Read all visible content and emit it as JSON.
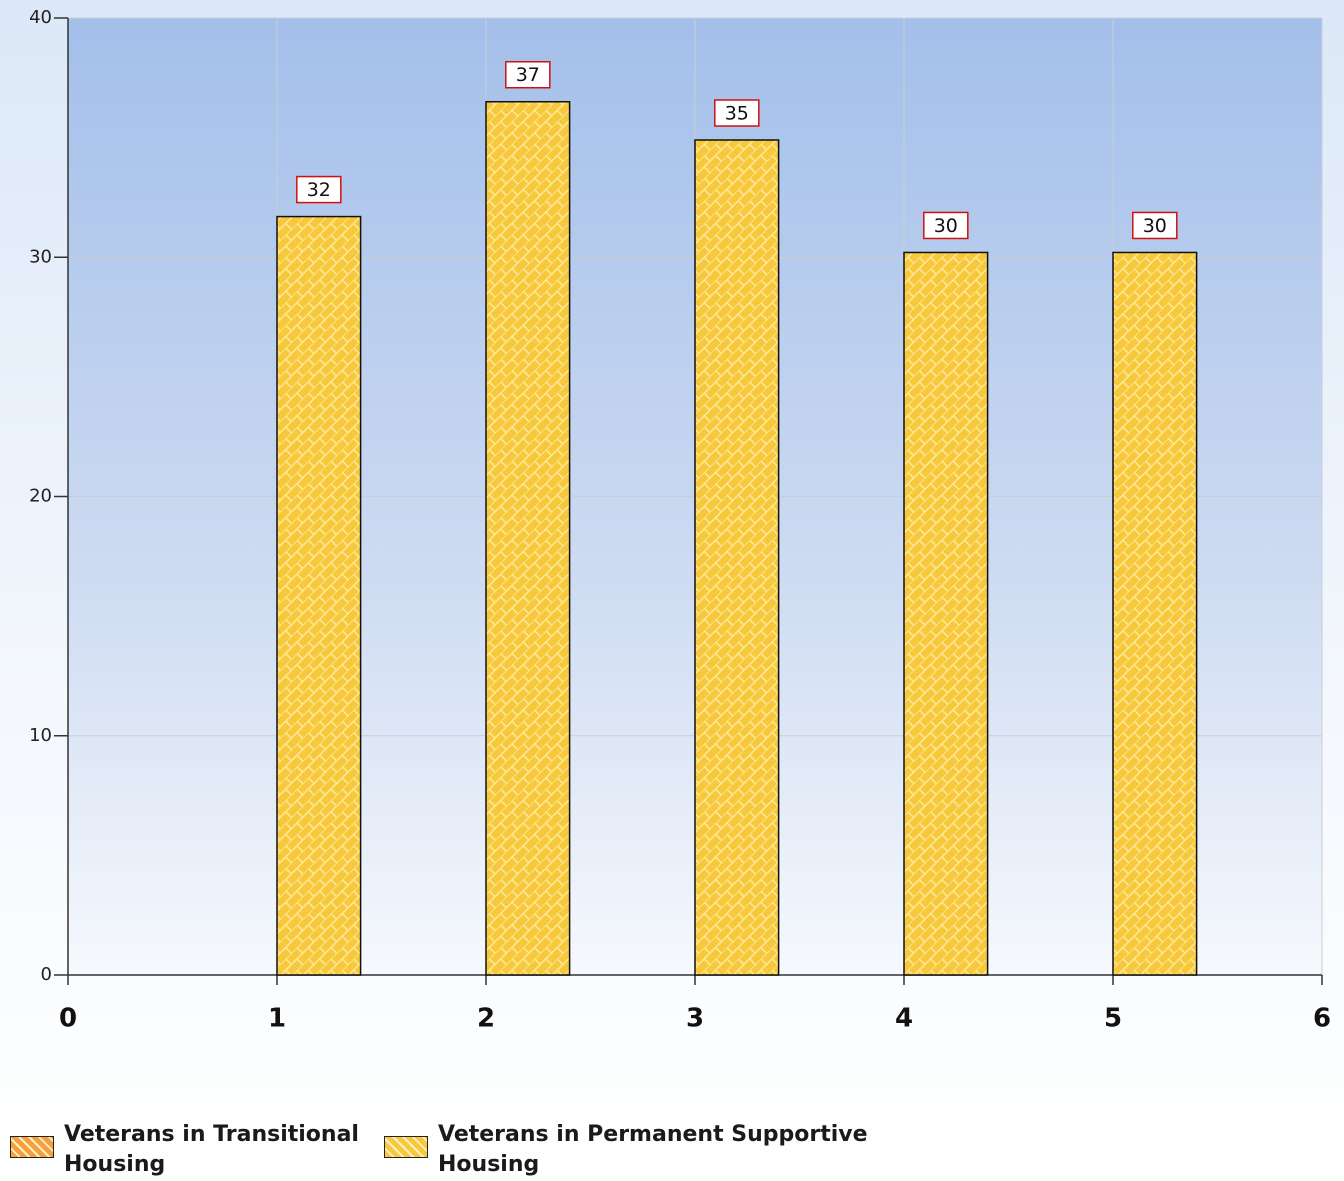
{
  "chart_data": {
    "type": "bar",
    "x": [
      1,
      2,
      3,
      4,
      5
    ],
    "series": [
      {
        "name": "Veterans in Transitional Housing",
        "color": "#f4a040",
        "values": [
          null,
          null,
          null,
          null,
          null
        ]
      },
      {
        "name": "Veterans in Permanent Supportive Housing",
        "color": "#f7c83c",
        "values": [
          31.7,
          36.5,
          34.9,
          30.2,
          30.2
        ],
        "value_labels": [
          "32",
          "37",
          "35",
          "30",
          "30"
        ]
      }
    ],
    "xlim": [
      0,
      6
    ],
    "xticks": [
      0,
      1,
      2,
      3,
      4,
      5,
      6
    ],
    "ylim": [
      0,
      40
    ],
    "yticks": [
      0,
      10,
      20,
      30,
      40
    ],
    "grid": true,
    "legend": "bottom"
  }
}
